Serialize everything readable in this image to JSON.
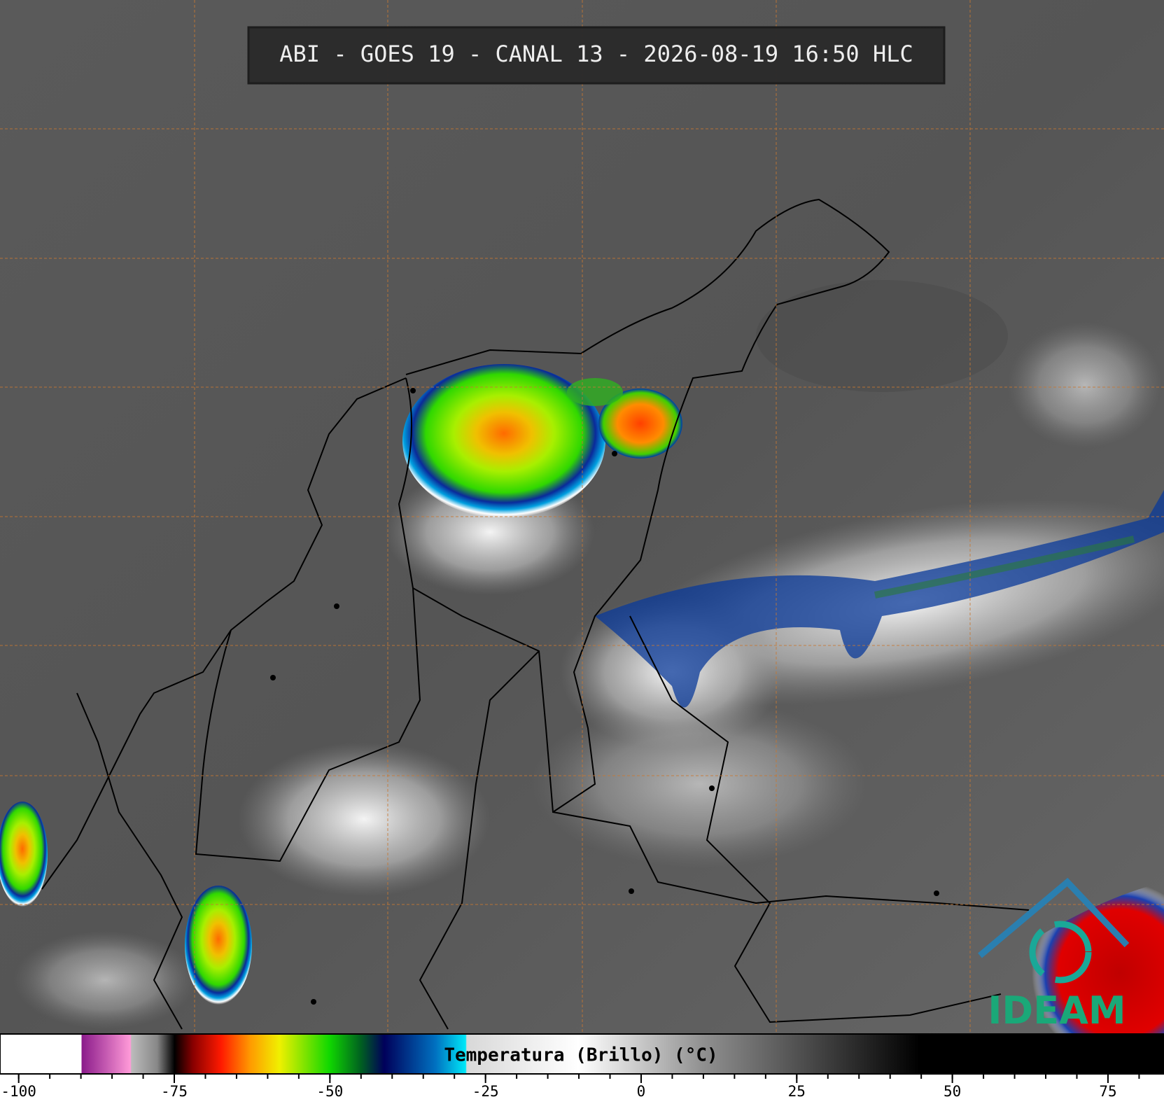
{
  "header": {
    "title": "ABI - GOES 19 - CANAL 13 - 2026-08-19 16:50 HLC"
  },
  "colorbar": {
    "label": "Temperatura (Brillo) (°C)",
    "lim": [
      -103,
      84
    ],
    "ticks": [
      -100,
      -75,
      -50,
      -25,
      0,
      25,
      50,
      75
    ]
  },
  "logo": {
    "text": "IDEAM"
  }
}
